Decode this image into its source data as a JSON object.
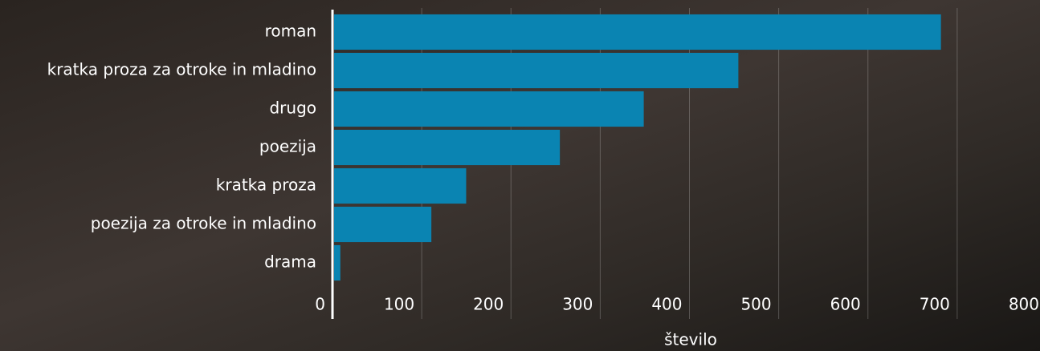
{
  "chart_data": {
    "type": "barh",
    "categories": [
      "roman",
      "kratka proza za otroke in mladino",
      "drugo",
      "poezija",
      "kratka proza",
      "poezija za otroke in mladino",
      "drama"
    ],
    "values": [
      680,
      453,
      347,
      253,
      148,
      109,
      7
    ],
    "color": "#0a84b2",
    "xlabel": "število",
    "xlim": [
      0,
      800
    ],
    "xticks": [
      0,
      100,
      200,
      300,
      400,
      500,
      600,
      700,
      800
    ],
    "grid": true
  }
}
